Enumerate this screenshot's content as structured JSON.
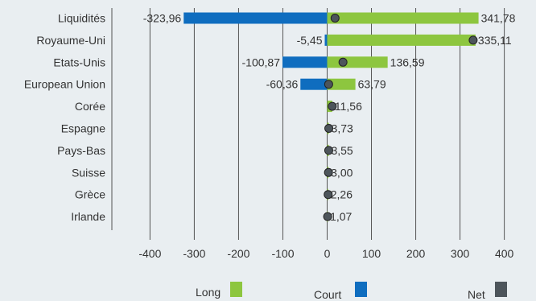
{
  "chart_data": {
    "type": "bar",
    "orientation": "horizontal",
    "stacked_diverging": true,
    "categories": [
      "Liquidités",
      "Royaume-Uni",
      "Etats-Unis",
      "European Union",
      "Corée",
      "Espagne",
      "Pays-Bas",
      "Suisse",
      "Grèce",
      "Irlande"
    ],
    "series": [
      {
        "name": "Long",
        "values": [
          341.78,
          335.11,
          136.59,
          63.79,
          11.56,
          3.73,
          3.55,
          3.0,
          2.26,
          1.07
        ]
      },
      {
        "name": "Court",
        "values": [
          -323.96,
          -5.45,
          -100.87,
          -60.36,
          0,
          0,
          0,
          0,
          0,
          0
        ]
      },
      {
        "name": "Net",
        "values": [
          17.82,
          329.66,
          35.72,
          3.43,
          11.56,
          3.73,
          3.55,
          3.0,
          2.26,
          1.07
        ]
      }
    ],
    "long_labels": [
      "341,78",
      "335,11",
      "136,59",
      "63,79",
      "11,56",
      "3,73",
      "3,55",
      "3,00",
      "2,26",
      "1,07"
    ],
    "short_labels": [
      "-323,96",
      "-5,45",
      "-100,87",
      "-60,36",
      "",
      "",
      "",
      "",
      "",
      ""
    ],
    "xlim": [
      -400,
      400
    ],
    "xticks": [
      -400,
      -300,
      -200,
      -100,
      0,
      100,
      200,
      300,
      400
    ],
    "xtick_labels": [
      "-400",
      "-300",
      "-200",
      "-100",
      "0",
      "100",
      "200",
      "300",
      "400"
    ],
    "grid": "vertical",
    "legend_position": "bottom",
    "colors": {
      "long": "#8dc63f",
      "short": "#0f6dbf",
      "net": "#4d555b",
      "grid": "#555555",
      "background": "#e9eef1"
    }
  },
  "legend": {
    "long": "Long",
    "short": "Court",
    "net": "Net"
  }
}
